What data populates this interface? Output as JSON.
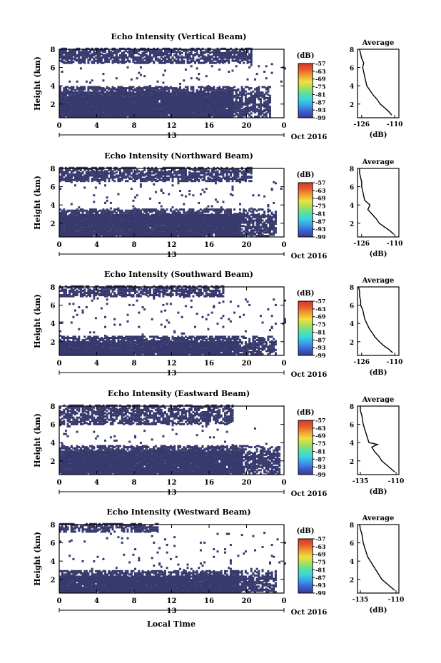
{
  "figure": {
    "xlabel": "Local Time"
  },
  "chart_data": [
    {
      "type": "heatmap",
      "title": "Echo Intensity (Vertical Beam)",
      "ylabel": "Height (km)",
      "x_ticks": [
        "0",
        "4",
        "8",
        "12",
        "16",
        "20",
        "0"
      ],
      "y_ticks": [
        "8",
        "6",
        "4",
        "2"
      ],
      "xlim": [
        0,
        24
      ],
      "ylim": [
        0.5,
        8
      ],
      "date_labels": {
        "day": "13",
        "month_year": "Oct 2016"
      },
      "colorbar": {
        "unit": "(dB)",
        "ticks": [
          "-57",
          "-63",
          "-69",
          "-75",
          "-81",
          "-87",
          "-93",
          "-99"
        ]
      },
      "pattern": {
        "top": [
          6.3,
          8.0
        ],
        "bottom": [
          0.5,
          3.8
        ],
        "lower_end_hour": 22.5,
        "upper_end_hour": 20.5
      },
      "average": {
        "title": "Average",
        "xlabel": "(dB)",
        "x_ticks": [
          "-126",
          "-110"
        ],
        "y_ticks": [
          "8",
          "6",
          "4",
          "2"
        ],
        "xlim": [
          -128,
          -108
        ],
        "ylim": [
          0.5,
          8
        ],
        "profile": [
          [
            -111.5,
            0.8
          ],
          [
            -113,
            1.2
          ],
          [
            -115,
            1.6
          ],
          [
            -117,
            2.0
          ],
          [
            -118.5,
            2.5
          ],
          [
            -120.5,
            3.0
          ],
          [
            -122,
            3.5
          ],
          [
            -123.5,
            4.0
          ],
          [
            -124,
            4.5
          ],
          [
            -124.5,
            5.0
          ],
          [
            -125,
            5.5
          ],
          [
            -125.5,
            6.0
          ],
          [
            -125,
            6.5
          ],
          [
            -126,
            7.0
          ],
          [
            -126.5,
            7.5
          ],
          [
            -127,
            8.0
          ]
        ]
      }
    },
    {
      "type": "heatmap",
      "title": "Echo Intensity (Northward Beam)",
      "ylabel": "Height (km)",
      "x_ticks": [
        "0",
        "4",
        "8",
        "12",
        "16",
        "20",
        "0"
      ],
      "y_ticks": [
        "8",
        "6",
        "4",
        "2"
      ],
      "xlim": [
        0,
        24
      ],
      "ylim": [
        0.5,
        8
      ],
      "date_labels": {
        "day": "13",
        "month_year": "Oct 2016"
      },
      "colorbar": {
        "unit": "(dB)",
        "ticks": [
          "-57",
          "-63",
          "-69",
          "-75",
          "-81",
          "-87",
          "-93",
          "-99"
        ]
      },
      "pattern": {
        "top": [
          6.5,
          8.0
        ],
        "bottom": [
          0.5,
          3.4
        ],
        "lower_end_hour": 23.0,
        "upper_end_hour": 20.5
      },
      "average": {
        "title": "Average",
        "xlabel": "(dB)",
        "x_ticks": [
          "-126",
          "-110"
        ],
        "y_ticks": [
          "8",
          "6",
          "4",
          "2"
        ],
        "xlim": [
          -128,
          -108
        ],
        "ylim": [
          0.5,
          8
        ],
        "profile": [
          [
            -110.5,
            0.8
          ],
          [
            -112.5,
            1.2
          ],
          [
            -115,
            1.6
          ],
          [
            -117.5,
            2.0
          ],
          [
            -119,
            2.5
          ],
          [
            -121,
            3.0
          ],
          [
            -123,
            3.5
          ],
          [
            -122,
            4.0
          ],
          [
            -124.5,
            4.5
          ],
          [
            -125,
            5.0
          ],
          [
            -125.5,
            5.5
          ],
          [
            -126,
            6.0
          ],
          [
            -126,
            6.5
          ],
          [
            -126.5,
            7.0
          ],
          [
            -127,
            7.5
          ],
          [
            -127,
            8.0
          ]
        ]
      }
    },
    {
      "type": "heatmap",
      "title": "Echo Intensity (Southward Beam)",
      "ylabel": "Height (km)",
      "x_ticks": [
        "0",
        "4",
        "8",
        "12",
        "16",
        "20",
        "0"
      ],
      "y_ticks": [
        "8",
        "6",
        "4",
        "2"
      ],
      "xlim": [
        0,
        24
      ],
      "ylim": [
        0.5,
        8
      ],
      "date_labels": {
        "day": "13",
        "month_year": "Oct 2016"
      },
      "colorbar": {
        "unit": "(dB)",
        "ticks": [
          "-57",
          "-63",
          "-69",
          "-75",
          "-81",
          "-87",
          "-93",
          "-99"
        ]
      },
      "pattern": {
        "top": [
          6.8,
          8.0
        ],
        "bottom": [
          0.5,
          2.5
        ],
        "lower_end_hour": 23.0,
        "upper_end_hour": 17.5
      },
      "average": {
        "title": "Average",
        "xlabel": "(dB)",
        "x_ticks": [
          "-126",
          "-110"
        ],
        "y_ticks": [
          "8",
          "6",
          "4",
          "2"
        ],
        "xlim": [
          -128,
          -108
        ],
        "ylim": [
          0.5,
          8
        ],
        "profile": [
          [
            -111,
            0.8
          ],
          [
            -113,
            1.2
          ],
          [
            -115.5,
            1.6
          ],
          [
            -117.5,
            2.0
          ],
          [
            -119.5,
            2.5
          ],
          [
            -121,
            3.0
          ],
          [
            -122.5,
            3.5
          ],
          [
            -123.5,
            4.0
          ],
          [
            -124.5,
            4.5
          ],
          [
            -125,
            5.0
          ],
          [
            -125.5,
            5.5
          ],
          [
            -126.5,
            6.0
          ],
          [
            -126.5,
            6.5
          ],
          [
            -127,
            7.0
          ],
          [
            -127,
            7.5
          ],
          [
            -127.5,
            8.0
          ]
        ]
      }
    },
    {
      "type": "heatmap",
      "title": "Echo Intensity (Eastward Beam)",
      "ylabel": "Height (km)",
      "x_ticks": [
        "0",
        "4",
        "8",
        "12",
        "16",
        "20",
        "0"
      ],
      "y_ticks": [
        "8",
        "6",
        "4",
        "2"
      ],
      "xlim": [
        0,
        24
      ],
      "ylim": [
        0.5,
        8
      ],
      "date_labels": {
        "day": "13",
        "month_year": "Oct 2016"
      },
      "colorbar": {
        "unit": "(dB)",
        "ticks": [
          "-57",
          "-63",
          "-69",
          "-75",
          "-81",
          "-87",
          "-93",
          "-99"
        ]
      },
      "pattern": {
        "top": [
          5.8,
          8.0
        ],
        "bottom": [
          0.5,
          3.6
        ],
        "lower_end_hour": 23.5,
        "upper_end_hour": 18.5
      },
      "average": {
        "title": "Average",
        "xlabel": "(dB)",
        "x_ticks": [
          "-135",
          "-110"
        ],
        "y_ticks": [
          "8",
          "6",
          "4",
          "2"
        ],
        "xlim": [
          -137,
          -108
        ],
        "ylim": [
          0.5,
          8
        ],
        "profile": [
          [
            -111,
            0.8
          ],
          [
            -114,
            1.2
          ],
          [
            -117,
            1.6
          ],
          [
            -120,
            2.0
          ],
          [
            -122,
            2.5
          ],
          [
            -125,
            3.0
          ],
          [
            -127,
            3.5
          ],
          [
            -123,
            3.8
          ],
          [
            -129,
            4.0
          ],
          [
            -130,
            4.5
          ],
          [
            -131,
            5.0
          ],
          [
            -132,
            5.5
          ],
          [
            -133,
            6.0
          ],
          [
            -133.5,
            6.5
          ],
          [
            -134,
            7.0
          ],
          [
            -135,
            7.5
          ],
          [
            -135,
            8.0
          ]
        ]
      }
    },
    {
      "type": "heatmap",
      "title": "Echo Intensity (Westward Beam)",
      "ylabel": "Height (km)",
      "x_ticks": [
        "0",
        "4",
        "8",
        "12",
        "16",
        "20",
        "0"
      ],
      "y_ticks": [
        "8",
        "6",
        "4",
        "2"
      ],
      "xlim": [
        0,
        24
      ],
      "ylim": [
        0.5,
        8
      ],
      "date_labels": {
        "day": "13",
        "month_year": "Oct 2016"
      },
      "colorbar": {
        "unit": "(dB)",
        "ticks": [
          "-57",
          "-63",
          "-69",
          "-75",
          "-81",
          "-87",
          "-93",
          "-99"
        ]
      },
      "pattern": {
        "top": [
          7.0,
          8.0
        ],
        "bottom": [
          0.5,
          2.8
        ],
        "lower_end_hour": 23.0,
        "upper_end_hour": 10.5
      },
      "average": {
        "title": "Average",
        "xlabel": "(dB)",
        "x_ticks": [
          "-135",
          "-110"
        ],
        "y_ticks": [
          "8",
          "6",
          "4",
          "2"
        ],
        "xlim": [
          -137,
          -108
        ],
        "ylim": [
          0.5,
          8
        ],
        "profile": [
          [
            -111,
            0.8
          ],
          [
            -114,
            1.2
          ],
          [
            -117,
            1.6
          ],
          [
            -120,
            2.0
          ],
          [
            -122,
            2.5
          ],
          [
            -124,
            3.0
          ],
          [
            -126,
            3.5
          ],
          [
            -128,
            4.0
          ],
          [
            -130,
            4.5
          ],
          [
            -131,
            5.0
          ],
          [
            -132,
            5.5
          ],
          [
            -133,
            6.0
          ],
          [
            -133.5,
            6.5
          ],
          [
            -134,
            7.0
          ],
          [
            -135,
            7.5
          ],
          [
            -135.5,
            8.0
          ]
        ]
      }
    }
  ],
  "colors": {
    "fill": "#383a6e",
    "colormap": [
      "#3a3a8e",
      "#3a5fd4",
      "#3a9ee8",
      "#3ad4e0",
      "#5ae0a0",
      "#a8e05a",
      "#f0e040",
      "#f0a030",
      "#e85a2a",
      "#d03a2a"
    ]
  }
}
